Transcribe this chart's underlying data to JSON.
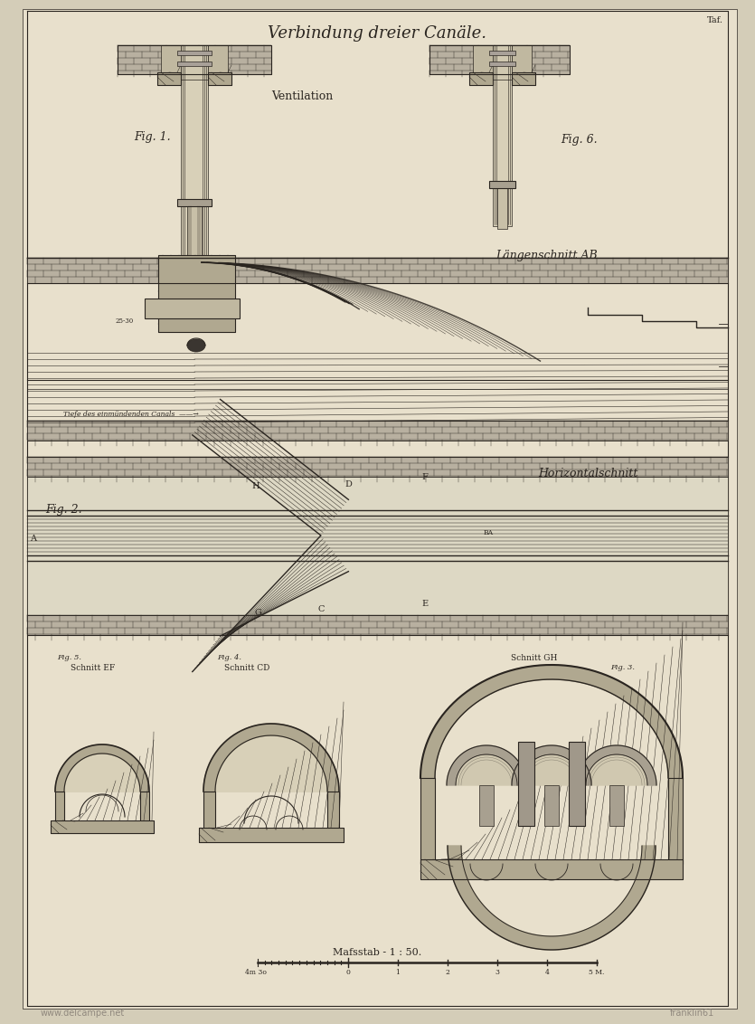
{
  "title": "Verbindung dreier Canäle.",
  "tab_label": "Taf.",
  "bg_color": "#d4cdb8",
  "paper_color": "#e8e0cc",
  "line_color": "#2a2520",
  "dark_gray": "#3a3530",
  "mid_gray": "#6a6560",
  "light_gray": "#9a9590",
  "hatch_color": "#4a4540",
  "fig1": "Fig. 1.",
  "fig2": "Fig. 2.",
  "fig3": "Fig. 3.",
  "fig4": "Fig. 4.",
  "fig5": "Fig. 5.",
  "fig6": "Fig. 6.",
  "ventilation": "Ventilation",
  "laengenschnitt": "Längenschnitt AB",
  "horizontalschnitt": "Horizontalschnitt",
  "schnittCD": "Schnitt CD",
  "schnittEF": "Schnitt EF",
  "schnittGH": "Schnitt GH",
  "massstab": "Mafsstab - 1 : 50.",
  "tiefe": "Tiefe des einmündenden Canals",
  "watermark1": "www.delcampe.net",
  "watermark2": "franklin61",
  "fig_label_size": 9,
  "title_size": 13,
  "label_size": 8
}
